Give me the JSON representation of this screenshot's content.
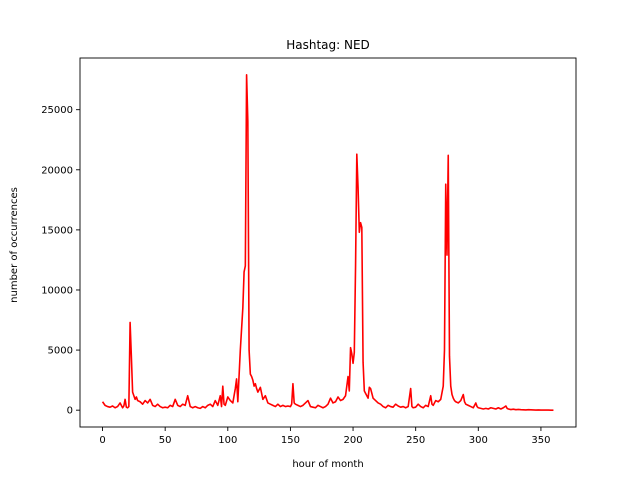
{
  "chart_data": {
    "type": "line",
    "title": "Hashtag: NED",
    "xlabel": "hour of month",
    "ylabel": "number of occurrences",
    "xlim": [
      -18,
      378
    ],
    "ylim": [
      -1400,
      29300
    ],
    "xticks": [
      0,
      50,
      100,
      150,
      200,
      250,
      300,
      350
    ],
    "yticks": [
      0,
      5000,
      10000,
      15000,
      20000,
      25000
    ],
    "grid": false,
    "legend": "none",
    "series": [
      {
        "color": "#ff0000",
        "points": [
          [
            0,
            700
          ],
          [
            2,
            400
          ],
          [
            4,
            300
          ],
          [
            6,
            250
          ],
          [
            8,
            350
          ],
          [
            10,
            200
          ],
          [
            12,
            300
          ],
          [
            14,
            600
          ],
          [
            15,
            400
          ],
          [
            16,
            200
          ],
          [
            17,
            350
          ],
          [
            18,
            900
          ],
          [
            19,
            250
          ],
          [
            20,
            200
          ],
          [
            21,
            300
          ],
          [
            22,
            7300
          ],
          [
            23,
            4500
          ],
          [
            24,
            1500
          ],
          [
            25,
            1200
          ],
          [
            26,
            900
          ],
          [
            27,
            1100
          ],
          [
            28,
            800
          ],
          [
            30,
            700
          ],
          [
            32,
            500
          ],
          [
            34,
            800
          ],
          [
            36,
            600
          ],
          [
            38,
            900
          ],
          [
            40,
            400
          ],
          [
            42,
            300
          ],
          [
            44,
            500
          ],
          [
            46,
            300
          ],
          [
            48,
            200
          ],
          [
            50,
            250
          ],
          [
            52,
            200
          ],
          [
            54,
            400
          ],
          [
            56,
            300
          ],
          [
            58,
            900
          ],
          [
            60,
            400
          ],
          [
            62,
            300
          ],
          [
            64,
            500
          ],
          [
            66,
            400
          ],
          [
            68,
            1200
          ],
          [
            70,
            300
          ],
          [
            72,
            200
          ],
          [
            74,
            300
          ],
          [
            76,
            200
          ],
          [
            78,
            150
          ],
          [
            80,
            300
          ],
          [
            82,
            200
          ],
          [
            84,
            400
          ],
          [
            86,
            500
          ],
          [
            88,
            300
          ],
          [
            90,
            800
          ],
          [
            92,
            400
          ],
          [
            94,
            1200
          ],
          [
            95,
            300
          ],
          [
            96,
            2000
          ],
          [
            97,
            500
          ],
          [
            98,
            400
          ],
          [
            100,
            1100
          ],
          [
            102,
            800
          ],
          [
            104,
            600
          ],
          [
            106,
            1800
          ],
          [
            107,
            2600
          ],
          [
            108,
            700
          ],
          [
            110,
            5000
          ],
          [
            112,
            8500
          ],
          [
            113,
            11500
          ],
          [
            114,
            12000
          ],
          [
            115,
            27900
          ],
          [
            116,
            24000
          ],
          [
            117,
            5000
          ],
          [
            118,
            3000
          ],
          [
            119,
            2800
          ],
          [
            120,
            2500
          ],
          [
            121,
            2000
          ],
          [
            122,
            2200
          ],
          [
            123,
            1800
          ],
          [
            124,
            1500
          ],
          [
            126,
            1900
          ],
          [
            128,
            900
          ],
          [
            130,
            1200
          ],
          [
            132,
            600
          ],
          [
            134,
            500
          ],
          [
            136,
            400
          ],
          [
            138,
            300
          ],
          [
            140,
            500
          ],
          [
            142,
            300
          ],
          [
            144,
            400
          ],
          [
            146,
            300
          ],
          [
            148,
            350
          ],
          [
            150,
            300
          ],
          [
            151,
            500
          ],
          [
            152,
            2200
          ],
          [
            153,
            600
          ],
          [
            154,
            500
          ],
          [
            156,
            400
          ],
          [
            158,
            300
          ],
          [
            160,
            400
          ],
          [
            162,
            600
          ],
          [
            164,
            800
          ],
          [
            166,
            300
          ],
          [
            168,
            250
          ],
          [
            170,
            200
          ],
          [
            172,
            400
          ],
          [
            174,
            300
          ],
          [
            176,
            200
          ],
          [
            178,
            300
          ],
          [
            180,
            500
          ],
          [
            182,
            1000
          ],
          [
            184,
            600
          ],
          [
            186,
            700
          ],
          [
            188,
            1100
          ],
          [
            190,
            800
          ],
          [
            192,
            900
          ],
          [
            194,
            1200
          ],
          [
            196,
            2800
          ],
          [
            197,
            1600
          ],
          [
            198,
            5200
          ],
          [
            199,
            4700
          ],
          [
            200,
            3900
          ],
          [
            201,
            4800
          ],
          [
            202,
            12000
          ],
          [
            203,
            21300
          ],
          [
            204,
            18500
          ],
          [
            205,
            14800
          ],
          [
            206,
            15600
          ],
          [
            207,
            15200
          ],
          [
            208,
            4000
          ],
          [
            209,
            1600
          ],
          [
            210,
            1400
          ],
          [
            211,
            1200
          ],
          [
            212,
            1000
          ],
          [
            213,
            1900
          ],
          [
            214,
            1800
          ],
          [
            215,
            1400
          ],
          [
            216,
            1000
          ],
          [
            218,
            800
          ],
          [
            220,
            600
          ],
          [
            222,
            500
          ],
          [
            224,
            300
          ],
          [
            226,
            200
          ],
          [
            228,
            400
          ],
          [
            230,
            300
          ],
          [
            232,
            250
          ],
          [
            234,
            500
          ],
          [
            236,
            350
          ],
          [
            238,
            250
          ],
          [
            240,
            300
          ],
          [
            242,
            200
          ],
          [
            244,
            300
          ],
          [
            246,
            1800
          ],
          [
            247,
            300
          ],
          [
            248,
            200
          ],
          [
            250,
            250
          ],
          [
            252,
            500
          ],
          [
            254,
            300
          ],
          [
            256,
            200
          ],
          [
            258,
            400
          ],
          [
            260,
            300
          ],
          [
            262,
            1200
          ],
          [
            263,
            500
          ],
          [
            264,
            400
          ],
          [
            266,
            800
          ],
          [
            268,
            700
          ],
          [
            270,
            900
          ],
          [
            272,
            2000
          ],
          [
            273,
            5000
          ],
          [
            274,
            18800
          ],
          [
            275,
            12900
          ],
          [
            276,
            21200
          ],
          [
            277,
            4500
          ],
          [
            278,
            2000
          ],
          [
            279,
            1300
          ],
          [
            280,
            1000
          ],
          [
            281,
            800
          ],
          [
            282,
            700
          ],
          [
            284,
            600
          ],
          [
            286,
            800
          ],
          [
            288,
            1300
          ],
          [
            289,
            700
          ],
          [
            290,
            500
          ],
          [
            292,
            400
          ],
          [
            294,
            300
          ],
          [
            296,
            200
          ],
          [
            298,
            600
          ],
          [
            299,
            300
          ],
          [
            300,
            200
          ],
          [
            302,
            150
          ],
          [
            304,
            100
          ],
          [
            306,
            150
          ],
          [
            308,
            100
          ],
          [
            310,
            200
          ],
          [
            312,
            150
          ],
          [
            314,
            100
          ],
          [
            316,
            200
          ],
          [
            318,
            100
          ],
          [
            320,
            200
          ],
          [
            322,
            350
          ],
          [
            323,
            150
          ],
          [
            324,
            100
          ],
          [
            326,
            50
          ],
          [
            328,
            80
          ],
          [
            330,
            40
          ],
          [
            332,
            60
          ],
          [
            334,
            40
          ],
          [
            336,
            30
          ],
          [
            338,
            20
          ],
          [
            340,
            40
          ],
          [
            342,
            30
          ],
          [
            344,
            20
          ],
          [
            346,
            10
          ],
          [
            348,
            20
          ],
          [
            350,
            10
          ],
          [
            352,
            5
          ],
          [
            354,
            10
          ],
          [
            356,
            5
          ],
          [
            358,
            0
          ],
          [
            360,
            0
          ]
        ]
      }
    ]
  }
}
